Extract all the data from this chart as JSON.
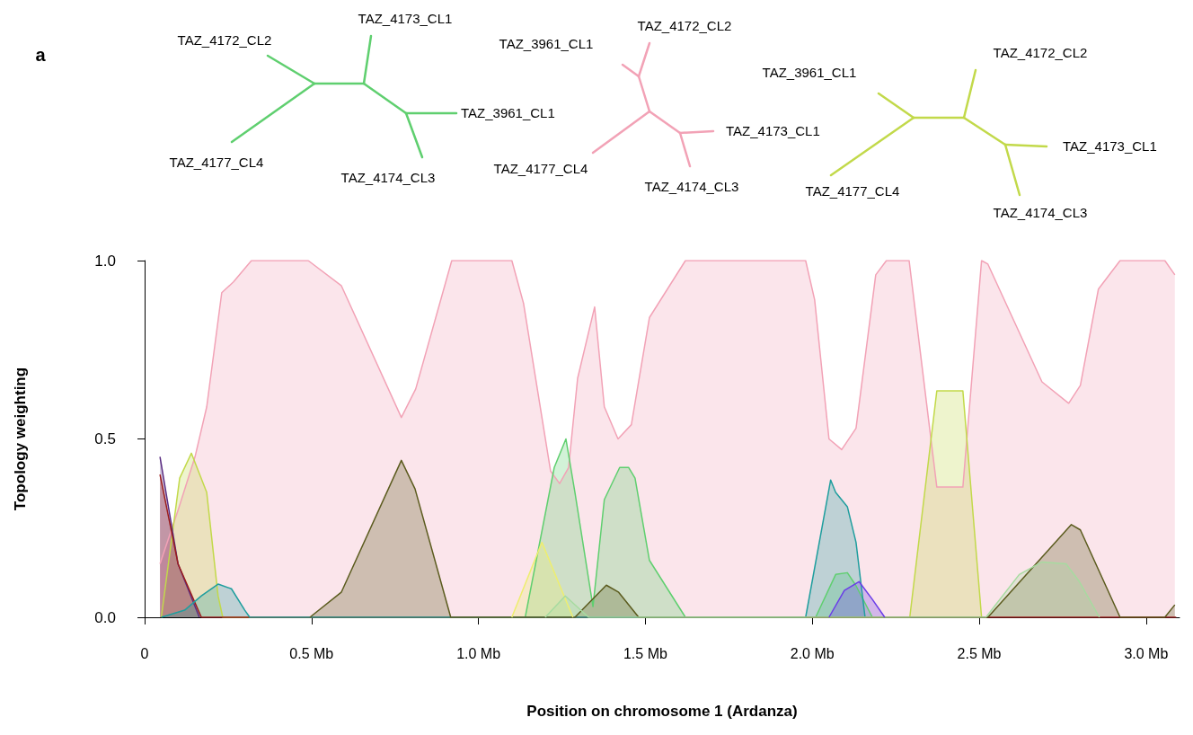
{
  "chart_data": {
    "type": "area",
    "xlabel": "Position on chromosome 1 (Ardanza)",
    "ylabel": "Topology weighting",
    "annotations": [
      "a",
      "TAZ_4172_CL2",
      "TAZ_4173_CL1",
      "TAZ_3961_CL1",
      "TAZ_4177_CL4",
      "TAZ_4174_CL3",
      "TAZ_3961_CL1",
      "TAZ_4172_CL2",
      "TAZ_4173_CL1",
      "TAZ_4177_CL4",
      "TAZ_4174_CL3",
      "TAZ_3961_CL1",
      "TAZ_4172_CL2",
      "TAZ_4173_CL1",
      "TAZ_4177_CL4",
      "TAZ_4174_CL3"
    ],
    "xlim": [
      0,
      3.1
    ],
    "ylim": [
      0,
      1
    ],
    "xticks": [
      0,
      {
        "value": 0.5,
        "label": "0.5 Mb"
      },
      {
        "value": 1.0,
        "label": "1.0 Mb"
      },
      {
        "value": 1.5,
        "label": "1.5 Mb"
      },
      {
        "value": 2.0,
        "label": "2.0 Mb"
      },
      {
        "value": 2.5,
        "label": "2.5 Mb"
      },
      {
        "value": 3.0,
        "label": "3.0 Mb"
      }
    ],
    "yticks": [
      {
        "value": 0,
        "label": "0.0"
      },
      {
        "value": 0.5,
        "label": "0.5"
      },
      {
        "value": 1,
        "label": "1.0"
      }
    ],
    "series": [
      {
        "color": "#f2a2b6",
        "x": [
          0.046,
          0.1,
          0.151,
          0.186,
          0.231,
          0.266,
          0.32,
          0.49,
          0.589,
          0.769,
          0.812,
          0.92,
          1.1,
          1.135,
          1.216,
          1.243,
          1.27,
          1.297,
          1.348,
          1.377,
          1.418,
          1.458,
          1.512,
          1.62,
          1.98,
          2.007,
          2.05,
          2.088,
          2.131,
          2.19,
          2.222,
          2.29,
          2.373,
          2.451,
          2.507,
          2.526,
          2.688,
          2.768,
          2.803,
          2.857,
          2.922,
          3.056,
          3.086
        ],
        "values": [
          0.15,
          0.3,
          0.45,
          0.59,
          0.91,
          0.94,
          1.0,
          1.0,
          0.93,
          0.56,
          0.64,
          1.0,
          1.0,
          0.88,
          0.41,
          0.375,
          0.42,
          0.67,
          0.87,
          0.59,
          0.5,
          0.54,
          0.84,
          1.0,
          1.0,
          0.89,
          0.5,
          0.47,
          0.53,
          0.96,
          1.0,
          1.0,
          0.365,
          0.365,
          1.0,
          0.99,
          0.66,
          0.6,
          0.65,
          0.92,
          1.0,
          1.0,
          0.96
        ]
      },
      {
        "color": "#5fcf6f",
        "x": [
          1.14,
          1.227,
          1.262,
          1.289,
          1.343,
          1.377,
          1.423,
          1.45,
          1.469,
          1.512,
          1.62,
          2.01,
          2.07,
          2.105,
          2.13,
          2.18
        ],
        "values": [
          0,
          0.42,
          0.5,
          0.35,
          0.03,
          0.33,
          0.42,
          0.42,
          0.39,
          0.16,
          0,
          0,
          0.12,
          0.125,
          0.09,
          0
        ]
      },
      {
        "color": "#c2d94a",
        "x": [
          0.05,
          0.105,
          0.14,
          0.186,
          0.22,
          0.234,
          2.292,
          2.373,
          2.451,
          2.507
        ],
        "values": [
          0,
          0.39,
          0.46,
          0.35,
          0.06,
          0,
          0,
          0.635,
          0.635,
          0
        ]
      },
      {
        "color": "#5a2d82",
        "x": [
          0.046,
          0.1,
          0.164
        ],
        "values": [
          0.45,
          0.15,
          0
        ]
      },
      {
        "color": "#9b1c1c",
        "x": [
          0.046,
          0.1,
          0.17,
          3.09
        ],
        "values": [
          0.4,
          0.15,
          0,
          0
        ]
      },
      {
        "color": "#1f9e9e",
        "x": [
          0.05,
          0.12,
          0.17,
          0.22,
          0.26,
          0.3,
          0.315,
          1.98,
          2.055,
          2.07,
          2.105,
          2.131,
          2.158
        ],
        "values": [
          0,
          0.02,
          0.06,
          0.093,
          0.08,
          0.02,
          0,
          0,
          0.385,
          0.35,
          0.31,
          0.21,
          0
        ]
      },
      {
        "color": "#5b5b1e",
        "x": [
          0.495,
          0.589,
          0.769,
          0.81,
          0.917,
          1.289,
          1.383,
          1.42,
          1.48,
          2.526,
          2.776,
          2.803,
          2.922,
          3.056,
          3.086
        ],
        "values": [
          0,
          0.07,
          0.44,
          0.36,
          0,
          0,
          0.09,
          0.07,
          0,
          0,
          0.26,
          0.245,
          0,
          0,
          0.035
        ]
      },
      {
        "color": "#eeee70",
        "x": [
          1.1,
          1.19,
          1.283
        ],
        "values": [
          0,
          0.21,
          0
        ]
      },
      {
        "color": "#a7dba0",
        "x": [
          1.2,
          1.26,
          1.33,
          2.52,
          2.62,
          2.688,
          2.76,
          2.8,
          2.86
        ],
        "values": [
          0,
          0.06,
          0,
          0,
          0.12,
          0.155,
          0.15,
          0.1,
          0
        ]
      },
      {
        "color": "#6a3de8",
        "x": [
          2.05,
          2.096,
          2.14,
          2.18,
          2.217
        ],
        "values": [
          0,
          0.075,
          0.1,
          0.05,
          0
        ]
      }
    ]
  }
}
